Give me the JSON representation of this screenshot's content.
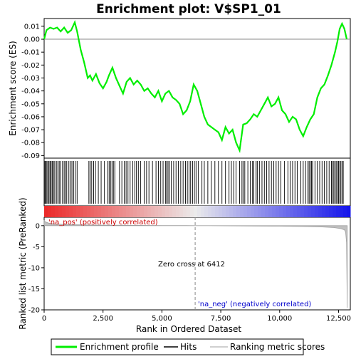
{
  "chart_data": {
    "type": "line",
    "title": "Enrichment plot: V$SP1_01",
    "panels": {
      "enrichment": {
        "ylabel": "Enrichment score (ES)",
        "ylim": [
          -0.092,
          0.016
        ],
        "yticks": [
          0.01,
          0.0,
          -0.01,
          -0.02,
          -0.03,
          -0.04,
          -0.05,
          -0.06,
          -0.07,
          -0.08,
          -0.09
        ],
        "ytick_labels": [
          "0.01",
          "0.00",
          "-0.01",
          "-0.02",
          "-0.03",
          "-0.04",
          "-0.05",
          "-0.06",
          "-0.07",
          "-0.08",
          "-0.09"
        ],
        "series": [
          {
            "name": "Enrichment profile",
            "color": "#00ee00",
            "x": [
              0,
              100,
              250,
              400,
              550,
              700,
              850,
              1000,
              1150,
              1300,
              1400,
              1550,
              1700,
              1850,
              1950,
              2050,
              2200,
              2350,
              2500,
              2650,
              2750,
              2900,
              3050,
              3200,
              3350,
              3500,
              3650,
              3800,
              3950,
              4100,
              4250,
              4400,
              4550,
              4700,
              4850,
              5000,
              5150,
              5300,
              5450,
              5600,
              5750,
              5900,
              6050,
              6200,
              6350,
              6500,
              6650,
              6800,
              6950,
              7100,
              7250,
              7400,
              7550,
              7700,
              7850,
              8000,
              8150,
              8300,
              8450,
              8600,
              8750,
              8900,
              9050,
              9200,
              9350,
              9500,
              9650,
              9800,
              9950,
              10100,
              10250,
              10400,
              10550,
              10700,
              10850,
              11000,
              11150,
              11300,
              11450,
              11600,
              11750,
              11900,
              12050,
              12200,
              12350,
              12450,
              12550,
              12650,
              12750,
              12850
            ],
            "y": [
              0.0,
              0.007,
              0.009,
              0.008,
              0.009,
              0.006,
              0.009,
              0.005,
              0.007,
              0.013,
              0.006,
              -0.008,
              -0.018,
              -0.03,
              -0.028,
              -0.032,
              -0.027,
              -0.034,
              -0.038,
              -0.033,
              -0.028,
              -0.022,
              -0.03,
              -0.036,
              -0.042,
              -0.033,
              -0.03,
              -0.035,
              -0.032,
              -0.035,
              -0.04,
              -0.038,
              -0.042,
              -0.045,
              -0.04,
              -0.048,
              -0.042,
              -0.04,
              -0.045,
              -0.047,
              -0.05,
              -0.058,
              -0.055,
              -0.048,
              -0.035,
              -0.04,
              -0.05,
              -0.06,
              -0.066,
              -0.068,
              -0.07,
              -0.072,
              -0.078,
              -0.068,
              -0.073,
              -0.07,
              -0.08,
              -0.086,
              -0.066,
              -0.065,
              -0.062,
              -0.058,
              -0.06,
              -0.055,
              -0.05,
              -0.045,
              -0.052,
              -0.05,
              -0.045,
              -0.055,
              -0.058,
              -0.064,
              -0.06,
              -0.062,
              -0.07,
              -0.075,
              -0.068,
              -0.062,
              -0.058,
              -0.045,
              -0.038,
              -0.035,
              -0.028,
              -0.02,
              -0.01,
              -0.002,
              0.008,
              0.012,
              0.008,
              0.0
            ]
          }
        ]
      },
      "hits": {
        "label": "Hits",
        "positions": [
          10,
          40,
          80,
          120,
          170,
          210,
          260,
          300,
          350,
          400,
          450,
          520,
          580,
          640,
          700,
          780,
          850,
          900,
          960,
          1050,
          1120,
          1180,
          1250,
          1320,
          1400,
          1900,
          1960,
          2020,
          2100,
          2180,
          2300,
          2420,
          2560,
          2700,
          2760,
          2820,
          2880,
          2940,
          3000,
          3200,
          3300,
          3400,
          3480,
          3560,
          3650,
          3760,
          3850,
          3920,
          4000,
          4100,
          4250,
          4350,
          4450,
          4600,
          4750,
          4850,
          4950,
          5050,
          5150,
          5200,
          5260,
          5320,
          5400,
          5500,
          5600,
          5700,
          5800,
          5900,
          6000,
          6080,
          6150,
          6220,
          6300,
          6380,
          6450,
          6550,
          6700,
          6800,
          6950,
          7100,
          7250,
          7400,
          7550,
          7700,
          7850,
          7950,
          8050,
          8150,
          8300,
          8400,
          8450,
          8520,
          8650,
          8750,
          8850,
          8900,
          9000,
          9050,
          9150,
          9250,
          9350,
          9450,
          9550,
          9650,
          9750,
          9850,
          9950,
          10050,
          10200,
          10350,
          10450,
          10550,
          10650,
          10750,
          10900,
          11000,
          11100,
          11200,
          11250,
          11300,
          11350,
          11400,
          11500,
          11600,
          11700,
          11800,
          11900,
          12000,
          12100,
          12200,
          12250,
          12300,
          12350,
          12400,
          12450,
          12500,
          12550,
          12600,
          12650,
          12700
        ]
      },
      "ranked_metric": {
        "ylabel": "Ranked list metric (PreRanked)",
        "xlabel": "Rank in Ordered Dataset",
        "xlim": [
          0,
          13000
        ],
        "ylim": [
          -20,
          2
        ],
        "xticks": [
          0,
          2500,
          5000,
          7500,
          10000,
          12500
        ],
        "xtick_labels": [
          "0",
          "2,500",
          "5,000",
          "7,500",
          "10,000",
          "12,500"
        ],
        "yticks": [
          0,
          -5,
          -10,
          -15,
          -20
        ],
        "ytick_labels": [
          "0",
          "-5",
          "-10",
          "-15",
          "-20"
        ],
        "series": [
          {
            "name": "Ranking metric scores",
            "color": "#c0c0c0",
            "x": [
              0,
              50,
              200,
              500,
              1000,
              2000,
              3000,
              4000,
              5000,
              6000,
              6412,
              7000,
              8000,
              9000,
              10000,
              11000,
              11800,
              12300,
              12600,
              12750,
              12800,
              12840,
              12870
            ],
            "y": [
              1.2,
              0.9,
              0.6,
              0.4,
              0.25,
              0.15,
              0.1,
              0.07,
              0.04,
              0.02,
              0.0,
              -0.02,
              -0.05,
              -0.08,
              -0.12,
              -0.2,
              -0.3,
              -0.45,
              -0.7,
              -1.0,
              -1.5,
              -4.0,
              -19.5
            ]
          }
        ],
        "zero_cross_label": "Zero cross at 6412",
        "zero_cross": 6412,
        "pos_label": "'na_pos' (positively correlated)",
        "neg_label": "'na_neg' (negatively correlated)",
        "pos_color": "#cc0000",
        "neg_color": "#0000cc"
      }
    },
    "legend": {
      "placement": "bottom",
      "items": [
        {
          "label": "Enrichment profile",
          "color": "#00ee00"
        },
        {
          "label": "Hits",
          "color": "#000000"
        },
        {
          "label": "Ranking metric scores",
          "color": "#c0c0c0"
        }
      ]
    }
  }
}
